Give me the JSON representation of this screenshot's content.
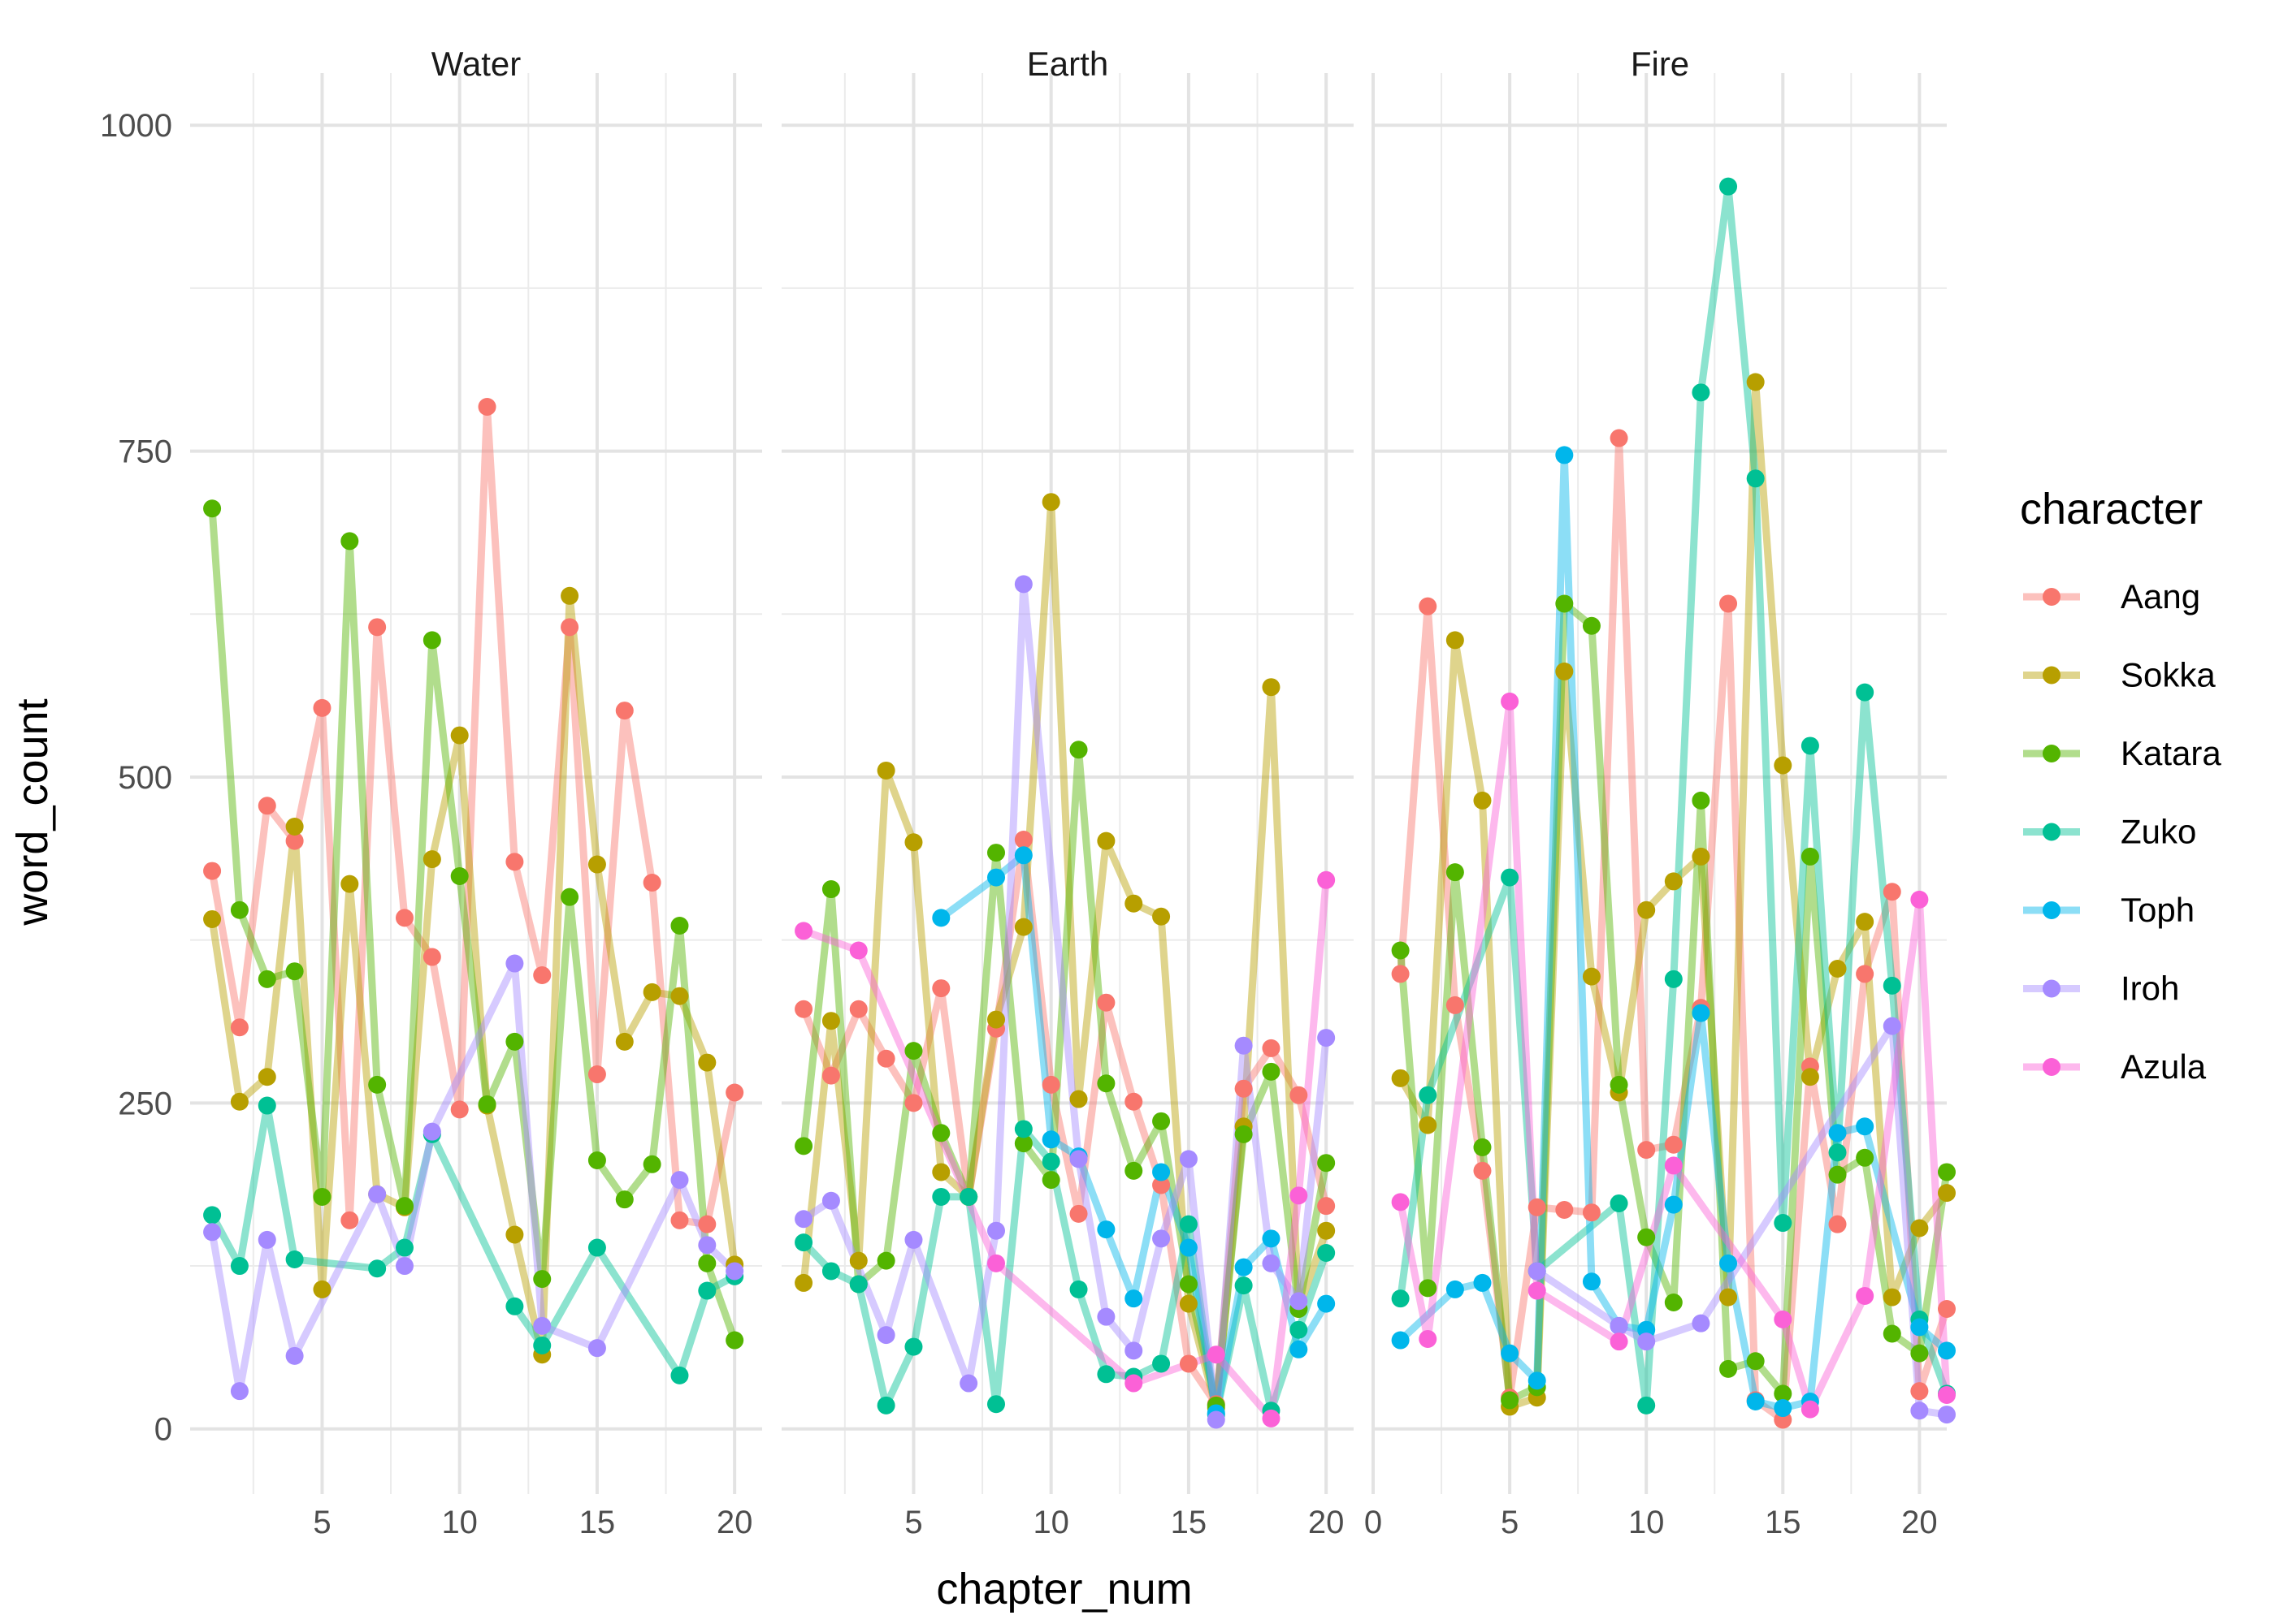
{
  "chart_data": {
    "type": "line",
    "xlabel": "chapter_num",
    "ylabel": "word_count",
    "ylim": [
      -50,
      1000
    ],
    "y_ticks": [
      0,
      250,
      500,
      750,
      1000
    ],
    "legend_title": "character",
    "legend_position": "right",
    "grid": true,
    "point_markers": true,
    "characters": [
      {
        "name": "Aang",
        "color": "#F8766D"
      },
      {
        "name": "Sokka",
        "color": "#B79F00"
      },
      {
        "name": "Katara",
        "color": "#53B400"
      },
      {
        "name": "Zuko",
        "color": "#00C094"
      },
      {
        "name": "Toph",
        "color": "#00B6EB"
      },
      {
        "name": "Iroh",
        "color": "#A58AFF"
      },
      {
        "name": "Azula",
        "color": "#FB61D7"
      }
    ],
    "panels": [
      {
        "title": "Water",
        "xlim": [
          0.2,
          21.0
        ],
        "x_ticks": [
          5,
          10,
          15,
          20
        ],
        "series": [
          {
            "name": "Aang",
            "x": [
              1,
              2,
              3,
              4,
              5,
              6,
              7,
              8,
              9,
              10,
              11,
              12,
              13,
              14,
              15,
              16,
              17,
              18,
              19,
              20
            ],
            "y": [
              428,
              308,
              478,
              451,
              553,
              160,
              615,
              392,
              362,
              245,
              784,
              435,
              348,
              615,
              272,
              551,
              419,
              160,
              157,
              258
            ]
          },
          {
            "name": "Sokka",
            "x": [
              1,
              2,
              3,
              4,
              5,
              6,
              7,
              8,
              9,
              10,
              11,
              12,
              13,
              14,
              15,
              16,
              17,
              18,
              19,
              20
            ],
            "y": [
              391,
              251,
              270,
              462,
              107,
              418,
              180,
              170,
              437,
              532,
              248,
              149,
              57,
              639,
              433,
              297,
              335,
              332,
              281,
              126
            ]
          },
          {
            "name": "Katara",
            "x": [
              1,
              2,
              3,
              4,
              5,
              6,
              7,
              8,
              9,
              10,
              11,
              12,
              13,
              14,
              15,
              16,
              17,
              18,
              19,
              20
            ],
            "y": [
              706,
              398,
              345,
              351,
              178,
              681,
              264,
              171,
              605,
              424,
              249,
              297,
              115,
              408,
              206,
              176,
              203,
              386,
              127,
              68
            ]
          },
          {
            "name": "Zuko",
            "x": [
              1,
              2,
              3,
              4,
              7,
              8,
              9,
              12,
              13,
              15,
              18,
              19,
              20
            ],
            "y": [
              164,
              125,
              248,
              130,
              123,
              139,
              226,
              94,
              64,
              139,
              41,
              106,
              117
            ]
          },
          {
            "name": "Iroh",
            "x": [
              1,
              2,
              3,
              4,
              7,
              8,
              9,
              12,
              13,
              15,
              18,
              19,
              20
            ],
            "y": [
              151,
              29,
              145,
              56,
              180,
              125,
              228,
              357,
              79,
              62,
              191,
              141,
              121
            ]
          }
        ]
      },
      {
        "title": "Earth",
        "xlim": [
          0.2,
          21.0
        ],
        "x_ticks": [
          5,
          10,
          15,
          20
        ],
        "series": [
          {
            "name": "Aang",
            "x": [
              1,
              2,
              3,
              4,
              5,
              6,
              7,
              8,
              9,
              10,
              11,
              12,
              13,
              14,
              15,
              16,
              17,
              18,
              19,
              20
            ],
            "y": [
              322,
              271,
              322,
              284,
              250,
              338,
              178,
              307,
              452,
              264,
              165,
              327,
              251,
              187,
              50,
              19,
              261,
              292,
              256,
              171
            ]
          },
          {
            "name": "Sokka",
            "x": [
              1,
              2,
              3,
              4,
              5,
              6,
              7,
              8,
              9,
              10,
              11,
              12,
              13,
              14,
              15,
              16,
              17,
              18,
              19,
              20
            ],
            "y": [
              112,
              313,
              129,
              505,
              450,
              197,
              178,
              314,
              385,
              711,
              253,
              451,
              403,
              393,
              96,
              16,
              232,
              569,
              92,
              152
            ]
          },
          {
            "name": "Katara",
            "x": [
              1,
              2,
              3,
              4,
              5,
              6,
              7,
              8,
              9,
              10,
              11,
              12,
              13,
              14,
              15,
              16,
              17,
              18,
              19,
              20
            ],
            "y": [
              217,
              414,
              111,
              129,
              290,
              227,
              178,
              442,
              219,
              191,
              521,
              265,
              198,
              236,
              111,
              18,
              226,
              274,
              92,
              204
            ]
          },
          {
            "name": "Zuko",
            "x": [
              1,
              2,
              3,
              4,
              5,
              6,
              7,
              8,
              9,
              10,
              11,
              12,
              13,
              14,
              15,
              16,
              17,
              18,
              19,
              20
            ],
            "y": [
              143,
              121,
              111,
              18,
              63,
              178,
              178,
              19,
              230,
              205,
              107,
              42,
              40,
              50,
              157,
              11,
              110,
              14,
              76,
              135
            ]
          },
          {
            "name": "Toph",
            "x": [
              6,
              8,
              9,
              10,
              11,
              12,
              13,
              14,
              15,
              16,
              17,
              18,
              19,
              20
            ],
            "y": [
              392,
              423,
              440,
              222,
              209,
              153,
              100,
              197,
              139,
              12,
              124,
              146,
              61,
              96
            ]
          },
          {
            "name": "Iroh",
            "x": [
              1,
              2,
              4,
              5,
              7,
              8,
              9,
              11,
              12,
              13,
              14,
              15,
              16,
              17,
              18,
              19,
              20
            ],
            "y": [
              161,
              175,
              72,
              145,
              35,
              152,
              648,
              207,
              86,
              60,
              146,
              207,
              7,
              294,
              127,
              98,
              300
            ]
          },
          {
            "name": "Azula",
            "x": [
              1,
              3,
              8,
              13,
              16,
              18,
              19,
              20
            ],
            "y": [
              382,
              367,
              127,
              35,
              57,
              8,
              179,
              421
            ]
          }
        ]
      },
      {
        "title": "Fire",
        "xlim": [
          0.0,
          21.0
        ],
        "x_ticks": [
          0,
          5,
          10,
          15,
          20
        ],
        "series": [
          {
            "name": "Aang",
            "x": [
              1,
              2,
              3,
              4,
              5,
              6,
              7,
              8,
              9,
              10,
              11,
              12,
              13,
              14,
              15,
              16,
              17,
              18,
              19,
              20,
              21
            ],
            "y": [
              349,
              631,
              325,
              198,
              24,
              170,
              168,
              166,
              760,
              214,
              218,
              323,
              633,
              22,
              7,
              278,
              157,
              349,
              412,
              29,
              92
            ]
          },
          {
            "name": "Sokka",
            "x": [
              1,
              2,
              3,
              4,
              5,
              6,
              7,
              8,
              9,
              10,
              11,
              12,
              13,
              14,
              15,
              16,
              17,
              18,
              19,
              20,
              21
            ],
            "y": [
              269,
              233,
              605,
              482,
              17,
              24,
              581,
              347,
              258,
              398,
              420,
              439,
              101,
              803,
              509,
              270,
              353,
              389,
              101,
              154,
              181
            ]
          },
          {
            "name": "Katara",
            "x": [
              1,
              2,
              3,
              4,
              5,
              6,
              7,
              8,
              9,
              10,
              11,
              12,
              13,
              14,
              15,
              16,
              17,
              18,
              19,
              20,
              21
            ],
            "y": [
              367,
              108,
              427,
              216,
              22,
              32,
              633,
              616,
              264,
              147,
              97,
              482,
              46,
              52,
              27,
              439,
              195,
              208,
              73,
              58,
              197
            ]
          },
          {
            "name": "Zuko",
            "x": [
              1,
              2,
              5,
              6,
              9,
              10,
              11,
              12,
              13,
              14,
              15,
              16,
              17,
              18,
              19,
              20,
              21
            ],
            "y": [
              100,
              256,
              423,
              121,
              173,
              18,
              345,
              795,
              953,
              729,
              158,
              524,
              212,
              565,
              340,
              84,
              27
            ]
          },
          {
            "name": "Toph",
            "x": [
              1,
              3,
              4,
              5,
              6,
              7,
              8,
              9,
              10,
              11,
              12,
              13,
              14,
              15,
              16,
              17,
              18,
              20,
              21
            ],
            "y": [
              68,
              107,
              112,
              58,
              37,
              747,
              113,
              79,
              76,
              172,
              319,
              127,
              21,
              16,
              21,
              227,
              232,
              78,
              60
            ]
          },
          {
            "name": "Iroh",
            "x": [
              6,
              9,
              10,
              12,
              19,
              20,
              21
            ],
            "y": [
              121,
              79,
              67,
              81,
              309,
              14,
              11
            ]
          },
          {
            "name": "Azula",
            "x": [
              1,
              2,
              5,
              6,
              9,
              11,
              15,
              16,
              18,
              20,
              21
            ],
            "y": [
              174,
              69,
              558,
              106,
              67,
              202,
              84,
              15,
              102,
              406,
              26
            ]
          }
        ]
      }
    ]
  }
}
